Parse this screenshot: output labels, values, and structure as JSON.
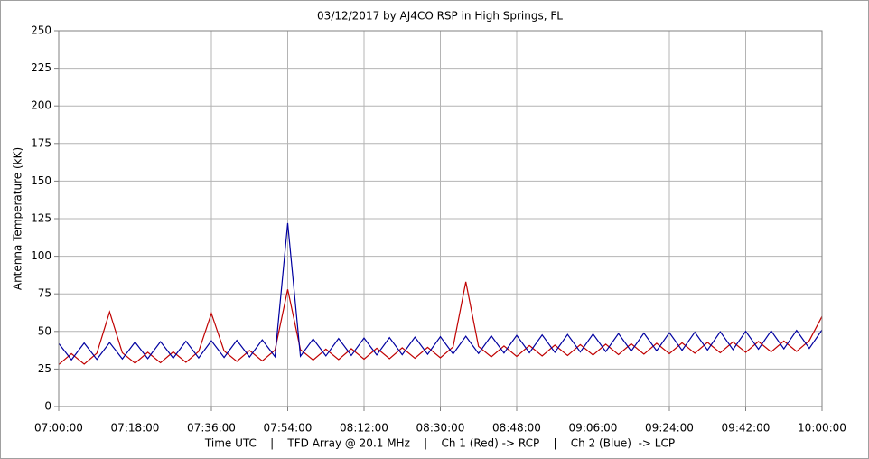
{
  "chart_data": {
    "type": "line",
    "title": "03/12/2017  by  AJ4CO RSP  in  High Springs, FL",
    "y_label": "Antenna Temperature (kK)",
    "x_label": "Time UTC    |    TFD Array @ 20.1 MHz    |    Ch 1 (Red) -> RCP    |    Ch 2 (Blue)  -> LCP",
    "x": [
      "07:00:00",
      "07:03:00",
      "07:06:00",
      "07:09:00",
      "07:12:00",
      "07:15:00",
      "07:18:00",
      "07:21:00",
      "07:24:00",
      "07:27:00",
      "07:30:00",
      "07:33:00",
      "07:36:00",
      "07:39:00",
      "07:42:00",
      "07:45:00",
      "07:48:00",
      "07:51:00",
      "07:54:00",
      "07:57:00",
      "08:00:00",
      "08:03:00",
      "08:06:00",
      "08:09:00",
      "08:12:00",
      "08:15:00",
      "08:18:00",
      "08:21:00",
      "08:24:00",
      "08:27:00",
      "08:30:00",
      "08:33:00",
      "08:36:00",
      "08:39:00",
      "08:42:00",
      "08:45:00",
      "08:48:00",
      "08:51:00",
      "08:54:00",
      "08:57:00",
      "09:00:00",
      "09:03:00",
      "09:06:00",
      "09:09:00",
      "09:12:00",
      "09:15:00",
      "09:18:00",
      "09:21:00",
      "09:24:00",
      "09:27:00",
      "09:30:00",
      "09:33:00",
      "09:36:00",
      "09:39:00",
      "09:42:00",
      "09:45:00",
      "09:48:00",
      "09:51:00",
      "09:54:00",
      "09:57:00",
      "10:00:00"
    ],
    "series": [
      {
        "color": "#c00000",
        "values": [
          28,
          35.2,
          28.3,
          35.5,
          63,
          35.8,
          28.9,
          36.1,
          29.2,
          36.4,
          29.5,
          36.7,
          62,
          37,
          30.1,
          37.3,
          30.4,
          37.6,
          78,
          37.9,
          31,
          38.2,
          31.3,
          38.5,
          31.6,
          38.8,
          31.9,
          39.1,
          32.2,
          39.4,
          32.5,
          39.7,
          83,
          40,
          33.1,
          40.3,
          33.4,
          40.6,
          33.7,
          40.9,
          34,
          41.2,
          34.3,
          41.5,
          34.6,
          41.8,
          34.9,
          42.1,
          35.2,
          42.4,
          35.5,
          42.7,
          35.8,
          43,
          36.1,
          43.3,
          36.4,
          43.6,
          36.7,
          43.9,
          60
        ]
      },
      {
        "color": "#0000a0",
        "values": [
          42,
          31.1,
          42.3,
          31.4,
          42.6,
          31.7,
          42.9,
          31.9,
          43.2,
          32.2,
          43.5,
          32.4,
          43.8,
          32.7,
          44.1,
          33,
          44.4,
          33.2,
          122,
          33.5,
          45,
          33.7,
          45.3,
          34,
          45.6,
          34.3,
          45.9,
          34.5,
          46.2,
          34.8,
          46.5,
          35,
          46.8,
          35.3,
          47.1,
          35.6,
          47.4,
          35.8,
          47.7,
          36.1,
          48,
          36.3,
          48.3,
          36.6,
          48.6,
          36.9,
          48.9,
          37.1,
          49.2,
          37.4,
          49.5,
          37.6,
          49.8,
          37.9,
          50.1,
          38.2,
          50.4,
          38.4,
          50.7,
          38.7,
          51
        ]
      }
    ],
    "ylim": [
      0,
      250
    ],
    "yticks": [
      0,
      25,
      50,
      75,
      100,
      125,
      150,
      175,
      200,
      225,
      250
    ],
    "xticks": [
      "07:00:00",
      "07:18:00",
      "07:36:00",
      "07:54:00",
      "08:12:00",
      "08:30:00",
      "08:48:00",
      "09:06:00",
      "09:24:00",
      "09:42:00",
      "10:00:00"
    ],
    "grid": true
  }
}
